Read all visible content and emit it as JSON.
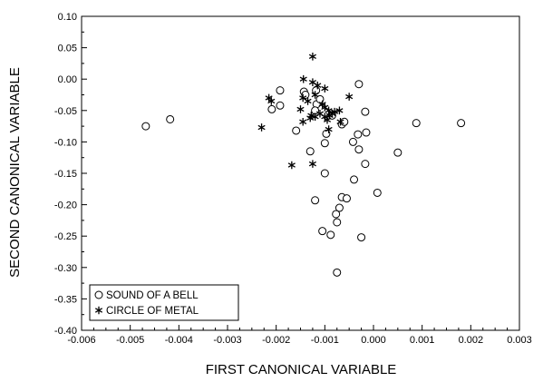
{
  "chart_data": {
    "type": "scatter",
    "title": "",
    "xlabel": "FIRST CANONICAL VARIABLE",
    "ylabel": "SECOND CANONICAL VARIABLE",
    "xlim": [
      -0.006,
      0.003
    ],
    "ylim": [
      -0.4,
      0.1
    ],
    "x_ticks": [
      "-0.006",
      "-0.005",
      "-0.004",
      "-0.003",
      "-0.002",
      "-0.001",
      "0.000",
      "0.001",
      "0.002",
      "0.003"
    ],
    "y_ticks": [
      "0.10",
      "0.05",
      "0.00",
      "-0.05",
      "-0.10",
      "-0.15",
      "-0.20",
      "-0.25",
      "-0.30",
      "-0.35",
      "-0.40"
    ],
    "grid": false,
    "legend_position": "bottom-left",
    "series": [
      {
        "name": "SOUND OF A BELL",
        "marker": "open-circle",
        "points": [
          [
            -0.00468,
            -0.075
          ],
          [
            -0.00418,
            -0.064
          ],
          [
            -0.00192,
            -0.018
          ],
          [
            -0.00209,
            -0.048
          ],
          [
            -0.00192,
            -0.042
          ],
          [
            -0.00143,
            -0.02
          ],
          [
            -0.0014,
            -0.025
          ],
          [
            -0.00118,
            -0.018
          ],
          [
            -0.00117,
            -0.04
          ],
          [
            -0.0011,
            -0.032
          ],
          [
            -0.0012,
            -0.05
          ],
          [
            -0.00159,
            -0.082
          ],
          [
            -0.0013,
            -0.115
          ],
          [
            -0.00097,
            -0.087
          ],
          [
            -0.001,
            -0.102
          ],
          [
            -0.00085,
            -0.058
          ],
          [
            -0.00065,
            -0.072
          ],
          [
            -0.0006,
            -0.068
          ],
          [
            -0.00042,
            -0.1
          ],
          [
            -0.00032,
            -0.088
          ],
          [
            -0.0003,
            -0.008
          ],
          [
            -0.00017,
            -0.052
          ],
          [
            -0.00015,
            -0.085
          ],
          [
            -0.0003,
            -0.112
          ],
          [
            -0.001,
            -0.15
          ],
          [
            -0.0004,
            -0.16
          ],
          [
            -0.00017,
            -0.135
          ],
          [
            0.0005,
            -0.117
          ],
          [
            0.00088,
            -0.07
          ],
          [
            0.0018,
            -0.07
          ],
          [
            8e-05,
            -0.181
          ],
          [
            -0.0012,
            -0.193
          ],
          [
            -0.00065,
            -0.188
          ],
          [
            -0.00055,
            -0.19
          ],
          [
            -0.0007,
            -0.205
          ],
          [
            -0.00077,
            -0.215
          ],
          [
            -0.00075,
            -0.228
          ],
          [
            -0.00105,
            -0.242
          ],
          [
            -0.00088,
            -0.248
          ],
          [
            -0.00025,
            -0.252
          ],
          [
            -0.00075,
            -0.308
          ]
        ]
      },
      {
        "name": "CIRCLE OF METAL",
        "marker": "asterisk",
        "points": [
          [
            -0.00125,
            0.036
          ],
          [
            -0.00144,
            0.0
          ],
          [
            -0.00125,
            -0.005
          ],
          [
            -0.00115,
            -0.01
          ],
          [
            -0.001,
            -0.015
          ],
          [
            -0.00215,
            -0.03
          ],
          [
            -0.0021,
            -0.035
          ],
          [
            -0.00145,
            -0.03
          ],
          [
            -0.00135,
            -0.035
          ],
          [
            -0.0012,
            -0.025
          ],
          [
            -0.0005,
            -0.028
          ],
          [
            -0.00105,
            -0.04
          ],
          [
            -0.001,
            -0.045
          ],
          [
            -0.00092,
            -0.05
          ],
          [
            -0.00085,
            -0.055
          ],
          [
            -0.0008,
            -0.052
          ],
          [
            -0.0007,
            -0.05
          ],
          [
            -0.0015,
            -0.048
          ],
          [
            -0.00128,
            -0.058
          ],
          [
            -0.0012,
            -0.06
          ],
          [
            -0.0011,
            -0.055
          ],
          [
            -0.001,
            -0.06
          ],
          [
            -0.0009,
            -0.058
          ],
          [
            -0.00095,
            -0.065
          ],
          [
            -0.0023,
            -0.077
          ],
          [
            -0.00145,
            -0.068
          ],
          [
            -0.0013,
            -0.062
          ],
          [
            -0.00068,
            -0.068
          ],
          [
            -0.00092,
            -0.08
          ],
          [
            -0.00168,
            -0.137
          ],
          [
            -0.00125,
            -0.135
          ]
        ]
      }
    ]
  }
}
